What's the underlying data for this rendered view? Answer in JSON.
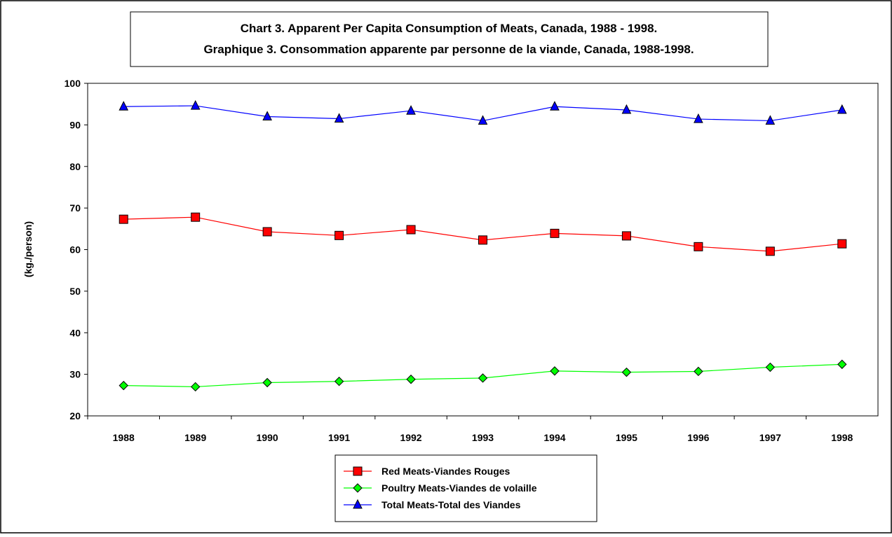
{
  "chart_data": {
    "type": "line",
    "title": "Chart 3.  Apparent Per Capita Consumption of Meats, Canada, 1988 - 1998.",
    "subtitle": "Graphique 3.  Consommation apparente par personne de la viande, Canada, 1988-1998.",
    "y_label": "(kg./person)",
    "categories": [
      "1988",
      "1989",
      "1990",
      "1991",
      "1992",
      "1993",
      "1994",
      "1995",
      "1996",
      "1997",
      "1998"
    ],
    "series": [
      {
        "name": "Red Meats-Viandes Rouges",
        "color": "#ff0000",
        "marker": "square",
        "values": [
          67.3,
          67.8,
          64.3,
          63.4,
          64.8,
          62.3,
          63.9,
          63.3,
          60.7,
          59.6,
          61.4
        ]
      },
      {
        "name": "Poultry Meats-Viandes de volaille",
        "color": "#00ff00",
        "marker": "diamond",
        "values": [
          27.3,
          27.0,
          28.0,
          28.3,
          28.8,
          29.1,
          30.8,
          30.5,
          30.7,
          31.7,
          32.4
        ]
      },
      {
        "name": "Total Meats-Total des Viandes",
        "color": "#0000ff",
        "marker": "triangle",
        "values": [
          94.4,
          94.6,
          92.0,
          91.5,
          93.4,
          91.0,
          94.4,
          93.6,
          91.4,
          91.0,
          93.6
        ]
      }
    ],
    "ylim": [
      20,
      100
    ],
    "yticks": [
      20,
      30,
      40,
      50,
      60,
      70,
      80,
      90,
      100
    ],
    "grid": false
  }
}
